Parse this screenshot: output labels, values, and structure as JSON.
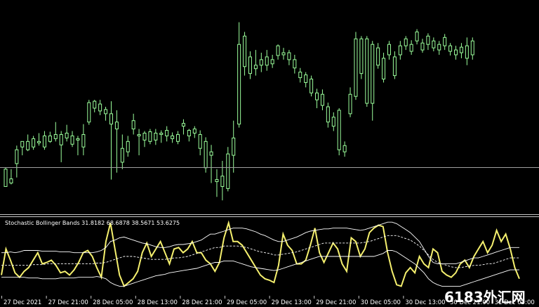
{
  "colors": {
    "background": "#000000",
    "candle": "#9cff9c",
    "panel_border": "#c8c8c8",
    "hline": "#a0a0a0",
    "stoch_line": "#f5f06e",
    "band_line": "#ffffff",
    "text": "#ffffff"
  },
  "indicator": {
    "label": "Stochastic Bollinger Bands 31.8182 68.6878 38.5671 53.6275"
  },
  "time_axis": {
    "labels": [
      "27 Dec 2021",
      "27 Dec 21:00",
      "28 Dec 05:00",
      "28 Dec 13:00",
      "28 Dec 21:00",
      "29 Dec 05:00",
      "29 Dec 13:00",
      "29 Dec 21:00",
      "30 Dec 05:00",
      "30 Dec 13:00",
      "30 Dec 21:00",
      "31 Dec 05:00"
    ]
  },
  "watermark": {
    "text": "6183外汇网"
  },
  "chart_data": [
    {
      "type": "candlestick",
      "title": "",
      "price_scale_visible": false,
      "horizontal_line": 238,
      "candles": [
        [
          10,
          35,
          62,
          60,
          45
        ],
        [
          11,
          40,
          38,
          46,
          60
        ],
        [
          12,
          68,
          48,
          88,
          94
        ],
        [
          13,
          92,
          80,
          100,
          100
        ],
        [
          14,
          88,
          86,
          100,
          110
        ],
        [
          15,
          92,
          88,
          104,
          108
        ],
        [
          16,
          98,
          94,
          100,
          112
        ],
        [
          17,
          92,
          88,
          108,
          115
        ],
        [
          18,
          100,
          98,
          108,
          114
        ],
        [
          19,
          104,
          100,
          110,
          128
        ],
        [
          20,
          95,
          70,
          110,
          115
        ],
        [
          21,
          105,
          100,
          112,
          124
        ],
        [
          22,
          96,
          92,
          108,
          115
        ],
        [
          23,
          102,
          80,
          104,
          108
        ],
        [
          24,
          92,
          80,
          110,
          125
        ],
        [
          25,
          128,
          124,
          156,
          160
        ],
        [
          26,
          148,
          142,
          158,
          160
        ],
        [
          27,
          144,
          138,
          154,
          160
        ],
        [
          28,
          140,
          130,
          146,
          150
        ],
        [
          29,
          125,
          45,
          140,
          158
        ],
        [
          30,
          118,
          55,
          128,
          145
        ],
        [
          31,
          70,
          60,
          90,
          110
        ],
        [
          32,
          85,
          78,
          100,
          108
        ],
        [
          33,
          118,
          110,
          130,
          140
        ],
        [
          34,
          108,
          80,
          110,
          118
        ],
        [
          35,
          102,
          92,
          112,
          115
        ],
        [
          36,
          100,
          96,
          114,
          118
        ],
        [
          37,
          102,
          95,
          112,
          118
        ],
        [
          38,
          110,
          98,
          112,
          116
        ],
        [
          39,
          108,
          100,
          116,
          122
        ],
        [
          40,
          104,
          98,
          108,
          113
        ],
        [
          41,
          100,
          96,
          110,
          115
        ],
        [
          42,
          122,
          110,
          126,
          132
        ],
        [
          43,
          108,
          100,
          116,
          118
        ],
        [
          44,
          112,
          105,
          118,
          122
        ],
        [
          45,
          90,
          80,
          110,
          116
        ],
        [
          46,
          62,
          55,
          100,
          106
        ],
        [
          47,
          80,
          40,
          85,
          95
        ],
        [
          48,
          42,
          20,
          45,
          60
        ],
        [
          49,
          35,
          15,
          50,
          72
        ],
        [
          50,
          32,
          28,
          82,
          92
        ],
        [
          51,
          80,
          55,
          105,
          130
        ],
        [
          52,
          125,
          120,
          240,
          272
        ],
        [
          53,
          208,
          195,
          252,
          258
        ],
        [
          54,
          198,
          190,
          222,
          230
        ],
        [
          55,
          205,
          195,
          210,
          232
        ],
        [
          56,
          210,
          200,
          218,
          228
        ],
        [
          57,
          210,
          202,
          222,
          232
        ],
        [
          58,
          212,
          206,
          218,
          225
        ],
        [
          59,
          224,
          218,
          238,
          240
        ],
        [
          60,
          225,
          218,
          228,
          235
        ],
        [
          61,
          218,
          210,
          228,
          232
        ],
        [
          62,
          206,
          198,
          218,
          225
        ],
        [
          63,
          192,
          185,
          200,
          206
        ],
        [
          64,
          185,
          178,
          196,
          200
        ],
        [
          65,
          170,
          165,
          190,
          195
        ],
        [
          66,
          160,
          148,
          170,
          176
        ],
        [
          67,
          152,
          145,
          168,
          175
        ],
        [
          68,
          128,
          120,
          150,
          156
        ],
        [
          69,
          122,
          115,
          135,
          142
        ],
        [
          70,
          88,
          80,
          145,
          148
        ],
        [
          71,
          85,
          78,
          94,
          100
        ],
        [
          72,
          140,
          135,
          168,
          178
        ],
        [
          73,
          165,
          160,
          248,
          258
        ],
        [
          74,
          198,
          190,
          248,
          252
        ],
        [
          75,
          155,
          150,
          248,
          252
        ],
        [
          76,
          155,
          130,
          240,
          245
        ],
        [
          77,
          210,
          205,
          235,
          242
        ],
        [
          78,
          190,
          185,
          220,
          228
        ],
        [
          79,
          225,
          218,
          240,
          245
        ],
        [
          80,
          195,
          190,
          222,
          230
        ],
        [
          81,
          225,
          218,
          238,
          245
        ],
        [
          82,
          238,
          232,
          248,
          252
        ],
        [
          83,
          230,
          225,
          240,
          246
        ],
        [
          84,
          245,
          240,
          258,
          262
        ],
        [
          85,
          232,
          228,
          242,
          248
        ],
        [
          86,
          240,
          232,
          252,
          256
        ],
        [
          87,
          235,
          230,
          245,
          250
        ],
        [
          88,
          232,
          225,
          240,
          245
        ],
        [
          89,
          238,
          232,
          250,
          255
        ],
        [
          90,
          230,
          224,
          238,
          242
        ],
        [
          91,
          225,
          218,
          232,
          238
        ],
        [
          92,
          228,
          220,
          236,
          242
        ],
        [
          93,
          220,
          210,
          238,
          250
        ],
        [
          94,
          225,
          218,
          245,
          250
        ]
      ]
    },
    {
      "type": "line",
      "title": "Stochastic Bollinger Bands 31.8182 68.6878 38.5671 53.6275",
      "x_labels": [
        "27 Dec 2021",
        "27 Dec 21:00",
        "28 Dec 05:00",
        "28 Dec 13:00",
        "28 Dec 21:00",
        "29 Dec 05:00",
        "29 Dec 13:00",
        "29 Dec 21:00",
        "30 Dec 05:00",
        "30 Dec 13:00",
        "30 Dec 21:00",
        "31 Dec 05:00"
      ],
      "ylim": [
        0,
        100
      ],
      "series": [
        {
          "name": "",
          "color": "#f5f06e",
          "values": [
            25,
            60,
            45,
            28,
            22,
            30,
            35,
            45,
            55,
            40,
            42,
            45,
            38,
            28,
            30,
            25,
            32,
            42,
            55,
            58,
            50,
            35,
            22,
            70,
            95,
            60,
            25,
            10,
            15,
            20,
            30,
            55,
            68,
            50,
            60,
            70,
            55,
            40,
            60,
            62,
            55,
            60,
            70,
            55,
            55,
            45,
            40,
            30,
            42,
            75,
            95,
            70,
            70,
            65,
            55,
            45,
            35,
            25,
            20,
            18,
            15,
            38,
            80,
            65,
            58,
            40,
            40,
            45,
            65,
            88,
            55,
            42,
            55,
            68,
            60,
            40,
            30,
            75,
            70,
            50,
            60,
            82,
            88,
            92,
            90,
            55,
            30,
            12,
            10,
            28,
            35,
            28,
            50,
            40,
            35,
            60,
            55,
            30,
            25,
            22,
            28,
            40,
            45,
            35,
            50,
            60,
            70,
            55,
            65,
            85,
            70,
            80,
            60,
            35,
            20
          ]
        },
        {
          "name": "",
          "color": "#ffffff",
          "values": [
            55,
            55,
            56,
            55,
            56,
            58,
            58,
            58,
            58,
            57,
            57,
            57,
            57,
            56,
            56,
            56,
            55,
            55,
            55,
            55,
            55,
            56,
            58,
            62,
            70,
            72,
            75,
            76,
            74,
            72,
            70,
            68,
            67,
            65,
            63,
            62,
            62,
            63,
            65,
            66,
            66,
            67,
            68,
            70,
            72,
            76,
            80,
            80,
            82,
            84,
            86,
            88,
            88,
            88,
            87,
            85,
            83,
            80,
            78,
            75,
            72,
            70,
            70,
            72,
            74,
            76,
            79,
            82,
            84,
            85,
            86,
            87,
            87,
            88,
            88,
            88,
            88,
            87,
            86,
            85,
            86,
            88,
            90,
            92,
            94,
            96,
            96,
            94,
            90,
            86,
            82,
            76,
            70,
            60,
            50,
            42,
            40,
            40,
            40,
            40,
            40,
            42,
            44,
            46,
            48,
            48,
            50,
            52,
            54,
            56,
            58,
            60,
            62,
            62,
            62
          ]
        },
        {
          "name": "",
          "color": "#ffffff",
          "values": [
            38,
            38,
            38,
            38,
            38,
            38,
            38,
            39,
            39,
            39,
            40,
            40,
            40,
            40,
            40,
            40,
            40,
            40,
            40,
            40,
            40,
            41,
            41,
            42,
            44,
            46,
            48,
            50,
            50,
            50,
            49,
            48,
            47,
            46,
            46,
            46,
            46,
            47,
            48,
            48,
            49,
            50,
            52,
            54,
            56,
            58,
            60,
            62,
            62,
            64,
            64,
            64,
            64,
            63,
            62,
            60,
            58,
            56,
            55,
            54,
            52,
            52,
            53,
            54,
            55,
            56,
            58,
            60,
            62,
            64,
            66,
            68,
            68,
            68,
            68,
            68,
            68,
            68,
            68,
            68,
            69,
            70,
            72,
            74,
            76,
            78,
            78,
            78,
            76,
            74,
            72,
            68,
            64,
            58,
            52,
            46,
            42,
            40,
            38,
            36,
            35,
            35,
            36,
            37,
            38,
            38,
            39,
            40,
            40,
            42,
            44,
            46,
            48,
            48,
            48
          ]
        },
        {
          "name": "",
          "color": "#ffffff",
          "values": [
            22,
            22,
            22,
            22,
            22,
            22,
            21,
            21,
            21,
            20,
            20,
            20,
            20,
            21,
            21,
            21,
            21,
            22,
            22,
            22,
            22,
            23,
            22,
            20,
            15,
            12,
            10,
            10,
            12,
            14,
            16,
            18,
            20,
            22,
            24,
            25,
            26,
            28,
            29,
            30,
            31,
            32,
            33,
            34,
            36,
            38,
            40,
            42,
            42,
            44,
            44,
            44,
            42,
            40,
            38,
            36,
            35,
            34,
            33,
            32,
            31,
            32,
            34,
            36,
            38,
            40,
            42,
            44,
            46,
            48,
            50,
            50,
            50,
            50,
            50,
            50,
            50,
            50,
            50,
            50,
            50,
            50,
            50,
            52,
            54,
            58,
            58,
            56,
            52,
            48,
            44,
            40,
            34,
            28,
            20,
            15,
            12,
            10,
            10,
            10,
            10,
            10,
            12,
            14,
            16,
            18,
            20,
            22,
            24,
            26,
            28,
            30,
            32,
            32,
            32
          ]
        }
      ]
    }
  ]
}
